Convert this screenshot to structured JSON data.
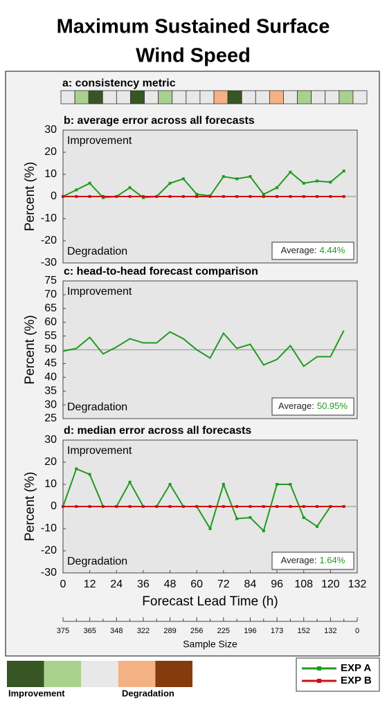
{
  "title": [
    "Maximum Sustained Surface",
    "Wind Speed"
  ],
  "consistency": {
    "title": "a: consistency metric",
    "cells": [
      "#e8e8e8",
      "#a9d18e",
      "#375623",
      "#e8e8e8",
      "#e8e8e8",
      "#375623",
      "#e8e8e8",
      "#a9d18e",
      "#e8e8e8",
      "#e8e8e8",
      "#e8e8e8",
      "#f4b183",
      "#375623",
      "#e8e8e8",
      "#e8e8e8",
      "#f4b183",
      "#e8e8e8",
      "#a9d18e",
      "#e8e8e8",
      "#e8e8e8",
      "#a9d18e",
      "#e8e8e8"
    ]
  },
  "chart_data": [
    {
      "type": "line",
      "title": "b: average error across all forecasts",
      "y_label": "Percent (%)",
      "x": [
        0,
        6,
        12,
        18,
        24,
        30,
        36,
        42,
        48,
        54,
        60,
        66,
        72,
        78,
        84,
        90,
        96,
        102,
        108,
        114,
        120,
        126
      ],
      "xlim": [
        0,
        132
      ],
      "ylim": [
        -30,
        30
      ],
      "yticks": [
        -30,
        -20,
        -10,
        0,
        10,
        20,
        30
      ],
      "reference": 0,
      "series": [
        {
          "name": "EXP A",
          "color": "#1e9a1e",
          "markers": true,
          "values": [
            0,
            3,
            6,
            -0.5,
            0,
            4,
            -0.5,
            0,
            6,
            8,
            1,
            0.3,
            9,
            8,
            9,
            1,
            4,
            11,
            6,
            7,
            6.5,
            11.5
          ]
        },
        {
          "name": "EXP B",
          "color": "#d01010",
          "markers": true,
          "values": [
            0,
            0,
            0,
            0,
            0,
            0,
            0,
            0,
            0,
            0,
            0,
            0,
            0,
            0,
            0,
            0,
            0,
            0,
            0,
            0,
            0,
            0
          ]
        }
      ],
      "annotations": [
        "Improvement",
        "Degradation"
      ],
      "average_label": "Average:",
      "average_value": "4.44%"
    },
    {
      "type": "line",
      "title": "c: head-to-head forecast comparison",
      "y_label": "Percent (%)",
      "x": [
        0,
        6,
        12,
        18,
        24,
        30,
        36,
        42,
        48,
        54,
        60,
        66,
        72,
        78,
        84,
        90,
        96,
        102,
        108,
        114,
        120,
        126
      ],
      "xlim": [
        0,
        132
      ],
      "ylim": [
        25,
        75
      ],
      "yticks": [
        25,
        30,
        35,
        40,
        45,
        50,
        55,
        60,
        65,
        70,
        75
      ],
      "reference": 50,
      "series": [
        {
          "name": "EXP A",
          "color": "#1e9a1e",
          "markers": false,
          "values": [
            49.5,
            50.5,
            54.5,
            48.5,
            51,
            54,
            52.5,
            52.5,
            56.5,
            54,
            50,
            47,
            56,
            50.5,
            52,
            44.5,
            46.5,
            51.5,
            44,
            47.5,
            47.5,
            57
          ]
        }
      ],
      "annotations": [
        "Improvement",
        "Degradation"
      ],
      "average_label": "Average:",
      "average_value": "50.95%"
    },
    {
      "type": "line",
      "title": "d: median error across all forecasts",
      "y_label": "Percent (%)",
      "x_label": "Forecast Lead Time (h)",
      "x": [
        0,
        6,
        12,
        18,
        24,
        30,
        36,
        42,
        48,
        54,
        60,
        66,
        72,
        78,
        84,
        90,
        96,
        102,
        108,
        114,
        120,
        126
      ],
      "xlim": [
        0,
        132
      ],
      "xticks": [
        0,
        12,
        24,
        36,
        48,
        60,
        72,
        84,
        96,
        108,
        120,
        132
      ],
      "ylim": [
        -30,
        30
      ],
      "yticks": [
        -30,
        -20,
        -10,
        0,
        10,
        20,
        30
      ],
      "reference": 0,
      "series": [
        {
          "name": "EXP A",
          "color": "#1e9a1e",
          "markers": true,
          "values": [
            0,
            17,
            14.5,
            0,
            0,
            11,
            0,
            0,
            10,
            0,
            0,
            -10,
            10,
            -5.5,
            -5,
            -11,
            10,
            10,
            -5,
            -9,
            0,
            0
          ]
        },
        {
          "name": "EXP B",
          "color": "#d01010",
          "markers": true,
          "values": [
            0,
            0,
            0,
            0,
            0,
            0,
            0,
            0,
            0,
            0,
            0,
            0,
            0,
            0,
            0,
            0,
            0,
            0,
            0,
            0,
            0,
            0
          ]
        }
      ],
      "annotations": [
        "Improvement",
        "Degradation"
      ],
      "average_label": "Average:",
      "average_value": "1.64%"
    }
  ],
  "sample_size": {
    "label": "Sample Size",
    "ticks": [
      {
        "value": 0,
        "label": "375"
      },
      {
        "value": 12,
        "label": "365"
      },
      {
        "value": 24,
        "label": "348"
      },
      {
        "value": 36,
        "label": "322"
      },
      {
        "value": 48,
        "label": "289"
      },
      {
        "value": 60,
        "label": "256"
      },
      {
        "value": 72,
        "label": "225"
      },
      {
        "value": 84,
        "label": "196"
      },
      {
        "value": 96,
        "label": "173"
      },
      {
        "value": 108,
        "label": "152"
      },
      {
        "value": 120,
        "label": "132"
      },
      {
        "value": 132,
        "label": "0"
      }
    ]
  },
  "scale": {
    "colors": [
      "#375623",
      "#a9d18e",
      "#e8e8e8",
      "#f4b183",
      "#843c0c"
    ],
    "labels": [
      "Improvement",
      "Degradation"
    ]
  }
}
